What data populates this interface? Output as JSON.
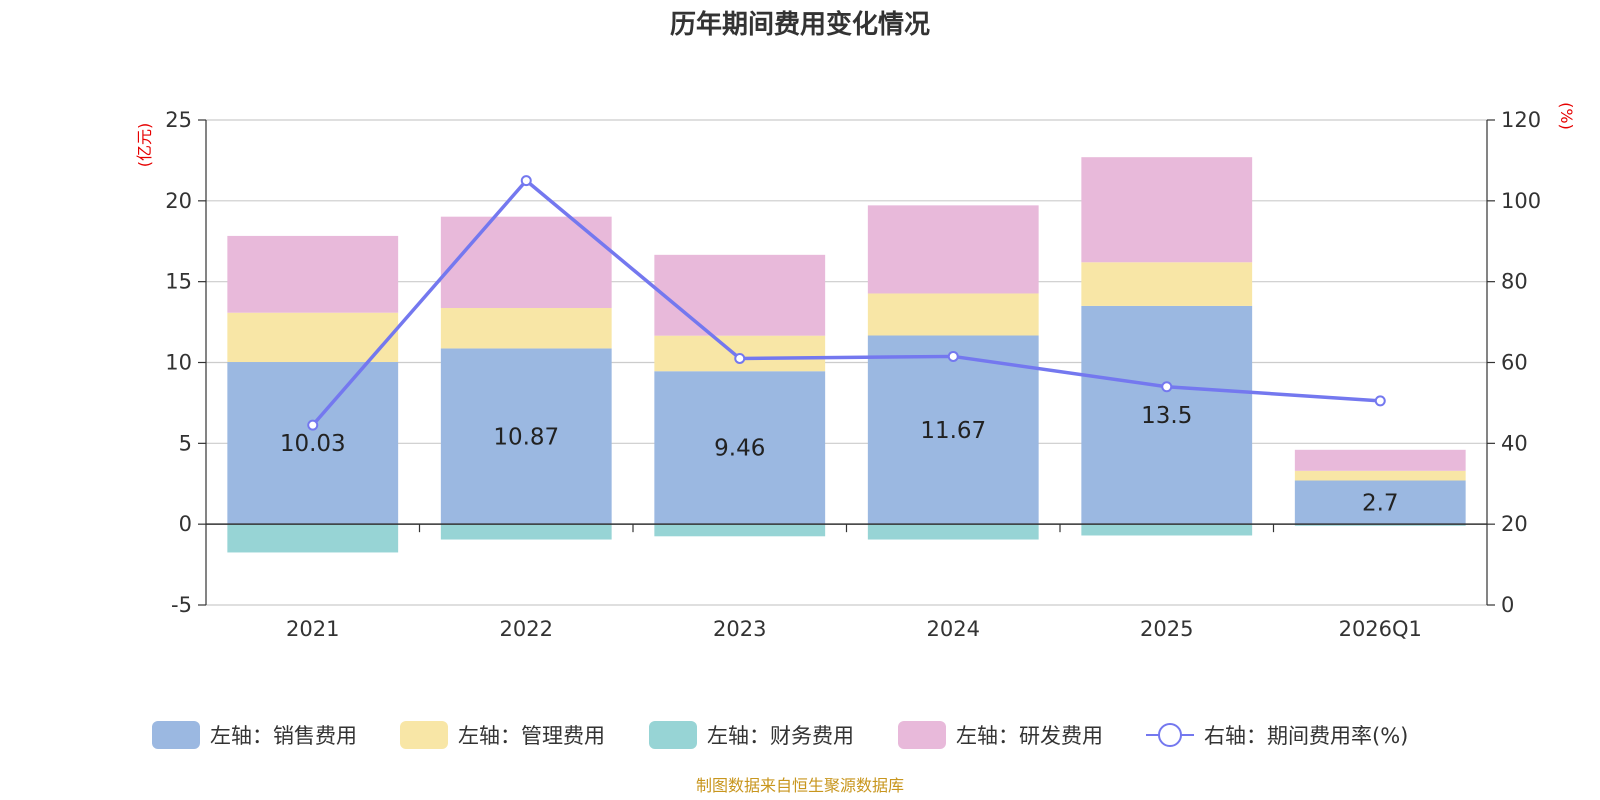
{
  "chart_data": {
    "type": "bar",
    "title": "历年期间费用变化情况",
    "categories": [
      "2021",
      "2022",
      "2023",
      "2024",
      "2025",
      "2026Q1"
    ],
    "left_axis": {
      "unit": "(亿元)",
      "ylim": [
        -5,
        25
      ],
      "ticks": [
        -5,
        0,
        5,
        10,
        15,
        20,
        25
      ]
    },
    "right_axis": {
      "unit": "(%)",
      "ylim": [
        0,
        120
      ],
      "ticks": [
        0,
        20,
        40,
        60,
        80,
        100,
        120
      ]
    },
    "series": [
      {
        "name": "左轴：销售费用",
        "axis": "left",
        "kind": "bar",
        "color": "#9bb8e1",
        "values": [
          10.03,
          10.87,
          9.46,
          11.67,
          13.5,
          2.7
        ],
        "labels": [
          "10.03",
          "10.87",
          "9.46",
          "11.67",
          "13.5",
          "2.7"
        ]
      },
      {
        "name": "左轴：管理费用",
        "axis": "left",
        "kind": "bar",
        "color": "#f8e6a6",
        "values": [
          3.05,
          2.5,
          2.2,
          2.6,
          2.7,
          0.6
        ]
      },
      {
        "name": "左轴：财务费用",
        "axis": "left",
        "kind": "bar",
        "color": "#97d4d5",
        "values": [
          -1.75,
          -0.95,
          -0.75,
          -0.95,
          -0.7,
          -0.1
        ]
      },
      {
        "name": "左轴：研发费用",
        "axis": "left",
        "kind": "bar",
        "color": "#e8b9da",
        "values": [
          4.75,
          5.65,
          5.0,
          5.45,
          6.5,
          1.3
        ]
      },
      {
        "name": "右轴：期间费用率(%)",
        "axis": "right",
        "kind": "line",
        "color": "#7478ef",
        "values": [
          44.5,
          105,
          61,
          61.5,
          54,
          50.5
        ]
      }
    ],
    "grid": true,
    "legend": "bottom-center",
    "source": "制图数据来自恒生聚源数据库"
  }
}
